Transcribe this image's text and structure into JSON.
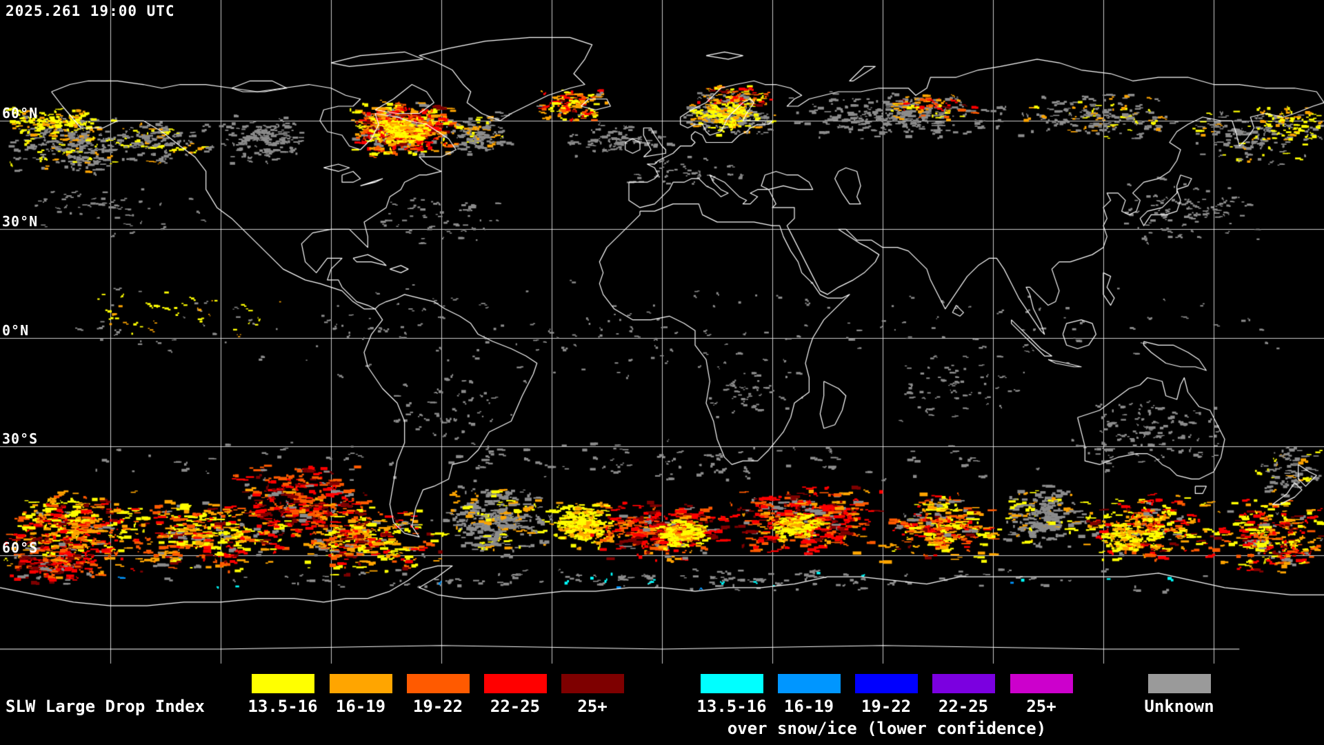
{
  "header": {
    "timestamp": "2025.261 19:00 UTC"
  },
  "map": {
    "lat_labels": [
      {
        "text": "60°N",
        "lat": 60
      },
      {
        "text": "30°N",
        "lat": 30
      },
      {
        "text": "0°N",
        "lat": 0
      },
      {
        "text": "30°S",
        "lat": -30
      },
      {
        "text": "60°S",
        "lat": -60
      }
    ]
  },
  "legend": {
    "title": "SLW Large Drop Index",
    "liquid_items": [
      {
        "label": "13.5-16",
        "color": "#FFFF00"
      },
      {
        "label": "16-19",
        "color": "#FFA500"
      },
      {
        "label": "19-22",
        "color": "#FF5A00"
      },
      {
        "label": "22-25",
        "color": "#FF0000"
      },
      {
        "label": "25+",
        "color": "#7E0000"
      }
    ],
    "snow_items": [
      {
        "label": "13.5-16",
        "color": "#00FFFF"
      },
      {
        "label": "16-19",
        "color": "#0096FF"
      },
      {
        "label": "19-22",
        "color": "#0000FF"
      },
      {
        "label": "22-25",
        "color": "#7B00E0"
      },
      {
        "label": "25+",
        "color": "#CC00CC"
      }
    ],
    "snow_caption": "over snow/ice (lower confidence)",
    "unknown": {
      "label": "Unknown",
      "color": "#9A9A9A"
    }
  },
  "map_colors": {
    "background": "#000000",
    "coastline": "#FFFFFF",
    "grid": "#C8C8C8",
    "unknown_pixel": "#8C8C8C"
  }
}
